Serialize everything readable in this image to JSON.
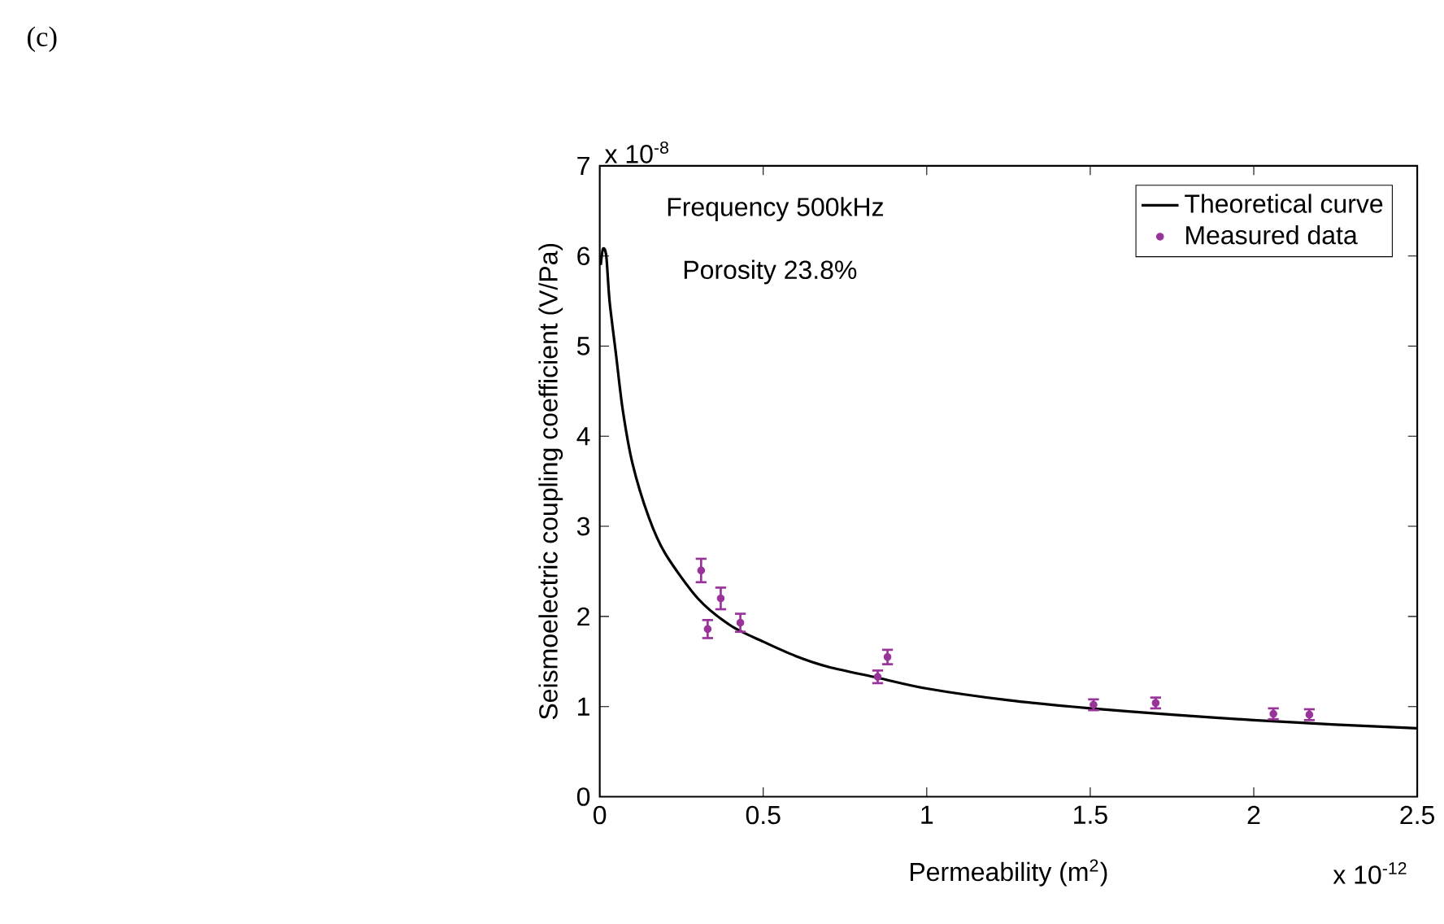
{
  "chart_data": {
    "type": "line",
    "title": "(c)",
    "xlabel": "Permeability (m$^{2}$)",
    "ylabel": "Seismoelectric coupling coefficient (V/Pa)",
    "annotations": [
      "Frequency 500kHz",
      "Porosity 23.8%",
      "x 10$^{-8}$",
      "x 10$^{-12}$"
    ],
    "xlim": [
      0,
      2.5
    ],
    "ylim": [
      0,
      7
    ],
    "xticks": [
      0,
      0.5,
      1,
      1.5,
      2,
      2.5
    ],
    "yticks": [
      0,
      1,
      2,
      3,
      4,
      5,
      6,
      7
    ],
    "legend": "top right",
    "grid": false,
    "series": [
      {
        "name": "Theoretical curve",
        "color": "#000000",
        "marker": "none",
        "line_style": "solid",
        "x": [
          0.003,
          0.01,
          0.02,
          0.03,
          0.05,
          0.07,
          0.1,
          0.15,
          0.2,
          0.3,
          0.4,
          0.5,
          0.6,
          0.7,
          0.85,
          1.0,
          1.25,
          1.5,
          1.75,
          2.0,
          2.25,
          2.5
        ],
        "values": [
          5.9,
          6.08,
          6.0,
          5.5,
          4.9,
          4.3,
          3.7,
          3.1,
          2.7,
          2.2,
          1.9,
          1.72,
          1.56,
          1.44,
          1.32,
          1.2,
          1.07,
          0.98,
          0.91,
          0.85,
          0.8,
          0.76
        ]
      },
      {
        "name": "Measured data",
        "type": "scatter",
        "color": "#993399",
        "marker": "circle",
        "x": [
          0.31,
          0.33,
          0.37,
          0.43,
          0.85,
          0.88,
          1.51,
          1.7,
          2.06,
          2.17
        ],
        "values": [
          2.51,
          1.86,
          2.2,
          1.93,
          1.33,
          1.55,
          1.02,
          1.04,
          0.92,
          0.91
        ],
        "errors": [
          0.13,
          0.1,
          0.12,
          0.1,
          0.07,
          0.08,
          0.06,
          0.06,
          0.06,
          0.06
        ]
      }
    ]
  }
}
